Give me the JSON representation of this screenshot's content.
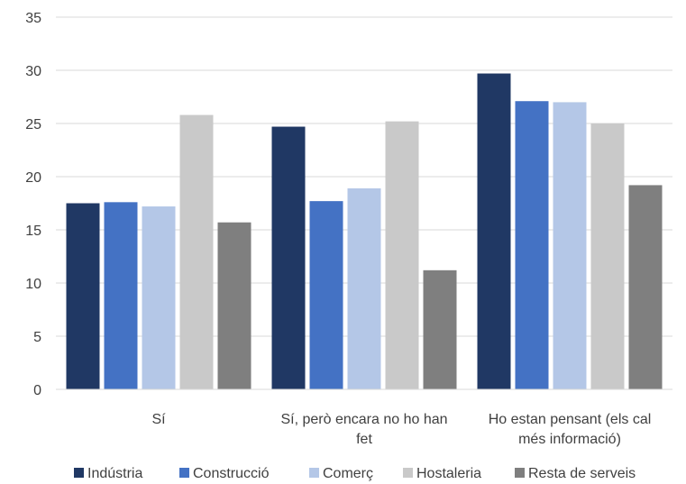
{
  "chart_data": {
    "type": "bar",
    "title": "",
    "xlabel": "",
    "ylabel": "",
    "ylim": [
      0,
      35
    ],
    "yticks": [
      0,
      5,
      10,
      15,
      20,
      25,
      30,
      35
    ],
    "grid": true,
    "legend_position": "bottom",
    "categories": [
      [
        "Sí"
      ],
      [
        "Sí, però encara no ho han",
        "fet"
      ],
      [
        "Ho estan pensant (els cal",
        "més informació)"
      ]
    ],
    "series": [
      {
        "name": "Indústria",
        "color": "#203864",
        "values": [
          17.5,
          24.7,
          29.7
        ]
      },
      {
        "name": "Construcció",
        "color": "#4472C4",
        "values": [
          17.6,
          17.7,
          27.1
        ]
      },
      {
        "name": "Comerç",
        "color": "#B4C7E7",
        "values": [
          17.2,
          18.9,
          27.0
        ]
      },
      {
        "name": "Hostaleria",
        "color": "#C9C9C9",
        "values": [
          25.8,
          25.2,
          25.0
        ]
      },
      {
        "name": "Resta de serveis",
        "color": "#7F7F7F",
        "values": [
          15.7,
          11.2,
          19.2
        ]
      }
    ]
  }
}
